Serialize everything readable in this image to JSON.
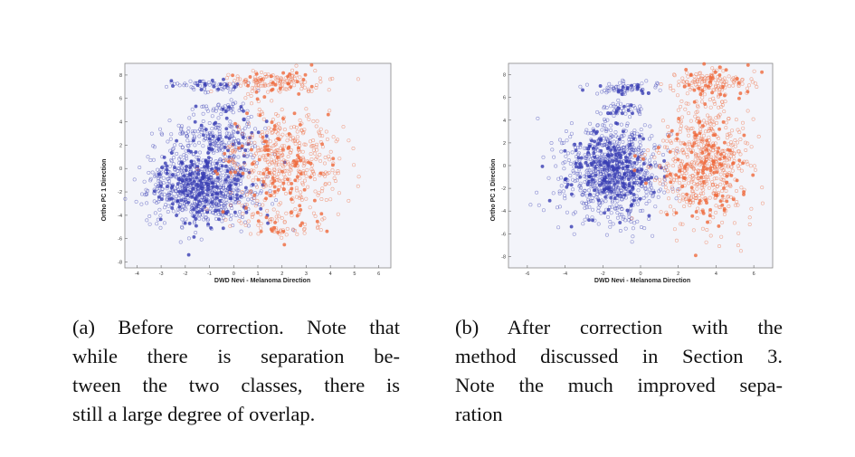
{
  "chart_data": [
    {
      "type": "scatter",
      "xlabel": "DWD Nevi - Melanoma Direction",
      "ylabel": "Ortho PC 1 Direction",
      "xlim": [
        -4.5,
        6.5
      ],
      "ylim": [
        -8.5,
        9
      ],
      "xticks": [
        -4,
        -3,
        -2,
        -1,
        0,
        1,
        2,
        3,
        4,
        5,
        6
      ],
      "yticks": [
        -8,
        -6,
        -4,
        -2,
        0,
        2,
        4,
        6,
        8
      ],
      "series": [
        {
          "color": "#3a3fb4",
          "marker": "circle",
          "clusters": [
            {
              "cx": -1.3,
              "cy": -1.6,
              "sx": 1.1,
              "sy": 1.5,
              "n": 900
            },
            {
              "cx": -0.6,
              "cy": 2.5,
              "sx": 1.0,
              "sy": 1.0,
              "n": 220
            },
            {
              "cx": -0.9,
              "cy": 7.1,
              "sx": 0.8,
              "sy": 0.25,
              "n": 70
            },
            {
              "cx": -0.5,
              "cy": 5.2,
              "sx": 0.6,
              "sy": 0.25,
              "n": 40
            }
          ]
        },
        {
          "color": "#ef6a3d",
          "marker": "circle",
          "clusters": [
            {
              "cx": 2.1,
              "cy": 0.5,
              "sx": 1.2,
              "sy": 2.3,
              "n": 500
            },
            {
              "cx": 1.9,
              "cy": 7.4,
              "sx": 1.0,
              "sy": 0.5,
              "n": 150
            },
            {
              "cx": 1.8,
              "cy": -5.0,
              "sx": 1.0,
              "sy": 0.7,
              "n": 60
            }
          ]
        }
      ]
    },
    {
      "type": "scatter",
      "xlabel": "DWD Nevi - Melanoma Direction",
      "ylabel": "Ortho PC 1 Direction",
      "xlim": [
        -7,
        7
      ],
      "ylim": [
        -9,
        9
      ],
      "xticks": [
        -6,
        -4,
        -2,
        0,
        2,
        4,
        6
      ],
      "yticks": [
        -8,
        -6,
        -4,
        -2,
        0,
        2,
        4,
        6,
        8
      ],
      "series": [
        {
          "color": "#3a3fb4",
          "marker": "circle",
          "clusters": [
            {
              "cx": -1.5,
              "cy": -0.5,
              "sx": 1.2,
              "sy": 2.0,
              "n": 1000
            },
            {
              "cx": -0.8,
              "cy": 6.8,
              "sx": 0.9,
              "sy": 0.3,
              "n": 70
            },
            {
              "cx": -1.0,
              "cy": 5.0,
              "sx": 0.6,
              "sy": 0.3,
              "n": 40
            }
          ]
        },
        {
          "color": "#ef6a3d",
          "marker": "circle",
          "clusters": [
            {
              "cx": 3.4,
              "cy": 0.2,
              "sx": 1.2,
              "sy": 2.6,
              "n": 650
            },
            {
              "cx": 4.0,
              "cy": 7.3,
              "sx": 1.0,
              "sy": 0.6,
              "n": 150
            }
          ]
        }
      ]
    }
  ],
  "captions": {
    "a": [
      "(a) Before correction. Note that",
      "while there is separation be-",
      "tween the two classes, there is",
      "still a large degree of overlap."
    ],
    "b": [
      "(b) After correction with the",
      "method discussed in Section 3.",
      "Note the much improved sepa-",
      "ration"
    ]
  }
}
